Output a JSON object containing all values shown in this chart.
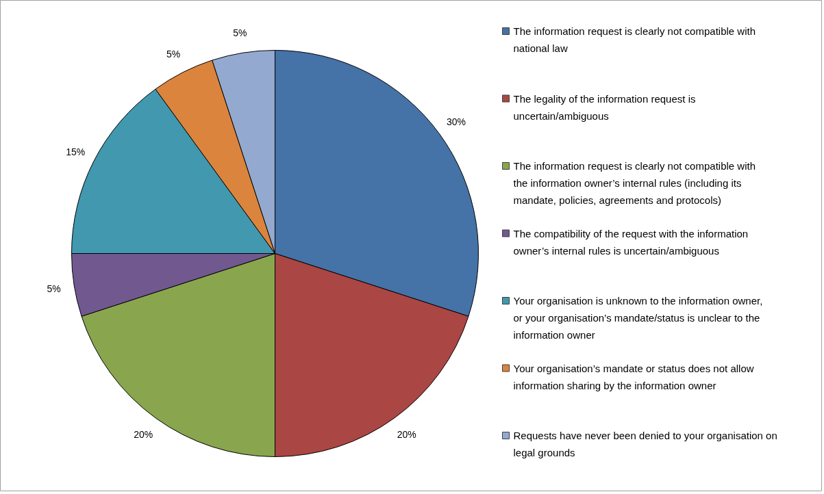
{
  "chart_data": {
    "type": "pie",
    "categories": [
      "The information request is clearly not compatible with national law",
      "The legality of the information request is uncertain/ambiguous",
      "The information request is clearly not compatible with the information owner’s internal rules (including its mandate, policies, agreements and protocols)",
      "The compatibility of the request with the information owner’s internal rules is uncertain/ambiguous",
      "Your organisation is unknown to the information owner, or your organisation’s mandate/status is unclear to the information owner",
      "Your organisation’s mandate or status does not allow information sharing by the information owner",
      "Requests have never been denied to your organisation on legal grounds"
    ],
    "values": [
      30,
      20,
      20,
      5,
      15,
      5,
      5
    ],
    "value_labels": [
      "30%",
      "20%",
      "20%",
      "5%",
      "15%",
      "5%",
      "5%"
    ],
    "colors": [
      "#4572a7",
      "#aa4643",
      "#89a54e",
      "#71588f",
      "#4198af",
      "#db843d",
      "#93a9cf"
    ],
    "legend": "right"
  }
}
